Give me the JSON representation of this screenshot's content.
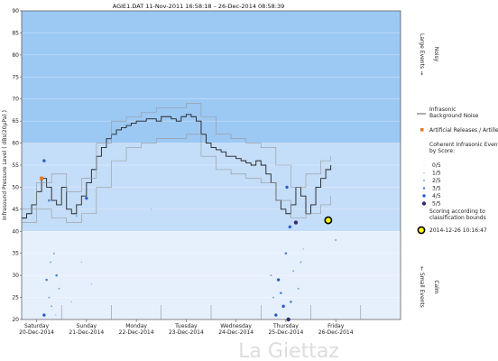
{
  "title": "AGIE1.DAT   11-Nov-2011 16:58:18   –   26-Dec-2014 08:58:39",
  "watermark": "La Giettaz",
  "chart_data": {
    "type": "line",
    "ylabel": "Infrasound Pressure Level  ( dBs(20µPa) )",
    "ylim": [
      20,
      90
    ],
    "yticks": [
      20,
      25,
      30,
      35,
      40,
      45,
      50,
      55,
      60,
      65,
      70,
      75,
      80,
      85,
      90
    ],
    "xlim": [
      0,
      7.6
    ],
    "day_ticks": [
      {
        "name": "Saturday",
        "date": "20-Dec-2014",
        "x": 0.3
      },
      {
        "name": "Sunday",
        "date": "21-Dec-2014",
        "x": 1.3
      },
      {
        "name": "Monday",
        "date": "22-Dec-2014",
        "x": 2.3
      },
      {
        "name": "Tuesday",
        "date": "23-Dec-2014",
        "x": 3.3
      },
      {
        "name": "Wednesday",
        "date": "24-Dec-2014",
        "x": 4.3
      },
      {
        "name": "Thursday",
        "date": "25-Dec-2014",
        "x": 5.3
      },
      {
        "name": "Friday",
        "date": "26-Dec-2014",
        "x": 6.3
      }
    ],
    "bands": [
      {
        "from": 60,
        "to": 90,
        "color": "#9cc8f4"
      },
      {
        "from": 40,
        "to": 60,
        "color": "#c4ddf8"
      },
      {
        "from": 20,
        "to": 40,
        "color": "#e6f0fc"
      }
    ],
    "right_labels": {
      "noisy": "Noisy",
      "large_events": "Large Events  →",
      "small_events": "←  Small Events",
      "calm": "Calm"
    },
    "series": [
      {
        "name": "Infrasonic Background Noise",
        "color": "#222222",
        "x": [
          0,
          0.1,
          0.2,
          0.3,
          0.4,
          0.5,
          0.6,
          0.7,
          0.8,
          0.9,
          1.0,
          1.1,
          1.2,
          1.3,
          1.4,
          1.5,
          1.6,
          1.7,
          1.8,
          1.9,
          2.0,
          2.1,
          2.2,
          2.3,
          2.4,
          2.5,
          2.6,
          2.7,
          2.8,
          2.9,
          3.0,
          3.1,
          3.2,
          3.3,
          3.4,
          3.5,
          3.6,
          3.7,
          3.8,
          3.9,
          4.0,
          4.1,
          4.2,
          4.3,
          4.4,
          4.5,
          4.6,
          4.7,
          4.8,
          4.9,
          5.0,
          5.1,
          5.2,
          5.3,
          5.4,
          5.5,
          5.6,
          5.7,
          5.8,
          5.9,
          6.0,
          6.1,
          6.2
        ],
        "values": [
          43,
          44,
          46,
          49,
          52,
          50,
          47,
          46,
          50,
          45,
          44,
          46,
          48,
          51,
          54,
          57,
          59,
          61,
          62,
          63,
          63.5,
          64,
          64.5,
          65,
          65,
          65.5,
          65.5,
          65,
          66,
          66,
          65.5,
          65,
          66,
          66.5,
          66,
          65,
          62,
          60,
          59,
          58.5,
          58,
          57,
          57,
          56.5,
          56,
          55.5,
          55,
          56,
          55,
          53,
          51,
          47,
          45,
          44,
          46,
          50,
          48,
          44,
          46,
          50,
          52,
          54,
          55
        ]
      },
      {
        "name": "upper envelope",
        "color": "#999999",
        "x": [
          0,
          0.3,
          0.6,
          0.9,
          1.2,
          1.5,
          1.8,
          2.1,
          2.4,
          2.7,
          3.0,
          3.3,
          3.6,
          3.9,
          4.2,
          4.5,
          4.8,
          5.1,
          5.4,
          5.7,
          6.0,
          6.2
        ],
        "values": [
          45,
          51,
          53,
          49,
          52,
          60,
          65,
          66,
          67,
          68,
          68,
          69,
          66,
          62,
          61,
          60,
          59,
          55,
          50,
          53,
          56,
          57
        ]
      },
      {
        "name": "lower envelope",
        "color": "#999999",
        "x": [
          0,
          0.3,
          0.6,
          0.9,
          1.2,
          1.5,
          1.8,
          2.1,
          2.4,
          2.7,
          3.0,
          3.3,
          3.6,
          3.9,
          4.2,
          4.5,
          4.8,
          5.1,
          5.4,
          5.7,
          6.0,
          6.2
        ],
        "values": [
          42,
          45,
          43,
          42,
          44,
          50,
          56,
          59,
          60,
          61,
          61,
          62,
          57,
          54,
          53,
          52,
          51,
          47,
          43,
          44,
          46,
          48
        ]
      }
    ],
    "events": [
      {
        "x": 0.4,
        "y": 52,
        "score": "artillery"
      },
      {
        "x": 0.45,
        "y": 56,
        "score": 4
      },
      {
        "x": 0.55,
        "y": 47,
        "score": 3
      },
      {
        "x": 0.5,
        "y": 29,
        "score": 3
      },
      {
        "x": 0.55,
        "y": 25,
        "score": 2
      },
      {
        "x": 0.6,
        "y": 23,
        "score": 2
      },
      {
        "x": 0.65,
        "y": 35,
        "score": 2
      },
      {
        "x": 0.7,
        "y": 30,
        "score": 3
      },
      {
        "x": 0.58,
        "y": 33,
        "score": 2
      },
      {
        "x": 0.45,
        "y": 21,
        "score": 4
      },
      {
        "x": 0.75,
        "y": 27,
        "score": 2
      },
      {
        "x": 0.68,
        "y": 21,
        "score": 1
      },
      {
        "x": 1.0,
        "y": 24,
        "score": 1
      },
      {
        "x": 1.1,
        "y": 43.5,
        "score": 2
      },
      {
        "x": 1.3,
        "y": 47.5,
        "score": 4
      },
      {
        "x": 1.2,
        "y": 33,
        "score": 1
      },
      {
        "x": 1.4,
        "y": 28,
        "score": 1
      },
      {
        "x": 2.6,
        "y": 45,
        "score": 1
      },
      {
        "x": 5.0,
        "y": 30,
        "score": 2
      },
      {
        "x": 5.05,
        "y": 25,
        "score": 2
      },
      {
        "x": 5.1,
        "y": 21,
        "score": 4
      },
      {
        "x": 5.15,
        "y": 29,
        "score": 4
      },
      {
        "x": 5.2,
        "y": 26,
        "score": 3
      },
      {
        "x": 5.25,
        "y": 23,
        "score": 4
      },
      {
        "x": 5.3,
        "y": 35,
        "score": 3
      },
      {
        "x": 5.32,
        "y": 50,
        "score": 4
      },
      {
        "x": 5.35,
        "y": 20,
        "score": 5
      },
      {
        "x": 5.38,
        "y": 41,
        "score": 4
      },
      {
        "x": 5.4,
        "y": 24,
        "score": 3
      },
      {
        "x": 5.45,
        "y": 31,
        "score": 2
      },
      {
        "x": 5.5,
        "y": 42,
        "score": 5
      },
      {
        "x": 5.55,
        "y": 27,
        "score": 2
      },
      {
        "x": 5.6,
        "y": 33,
        "score": 2
      },
      {
        "x": 5.65,
        "y": 36,
        "score": 1
      },
      {
        "x": 6.2,
        "y": 42,
        "score": 1
      },
      {
        "x": 6.3,
        "y": 38,
        "score": 2
      },
      {
        "x": 6.15,
        "y": 42.5,
        "score": "highlight"
      }
    ],
    "legend": {
      "noise_label": "Infrasonic Background Noise",
      "artillery_label": "Artificial Releases / Artillery",
      "coherent_label": "Coherent Infrasonic Events, by Score:",
      "scores": [
        "0/5",
        "1/5",
        "2/5",
        "3/5",
        "4/5",
        "5/5"
      ],
      "scoring_label": "Scoring according to classification bounds",
      "highlight_label": "2014-12-26 10:16:47"
    },
    "colors": {
      "artillery": "#e07820",
      "score0": "#cfe0f5",
      "score1": "#a8c4e8",
      "score2": "#7ea4dc",
      "score3": "#5284cc",
      "score4": "#2a5fc8",
      "score5": "#3a2a70",
      "highlight_fill": "#ffff00",
      "highlight_stroke": "#000000"
    }
  }
}
